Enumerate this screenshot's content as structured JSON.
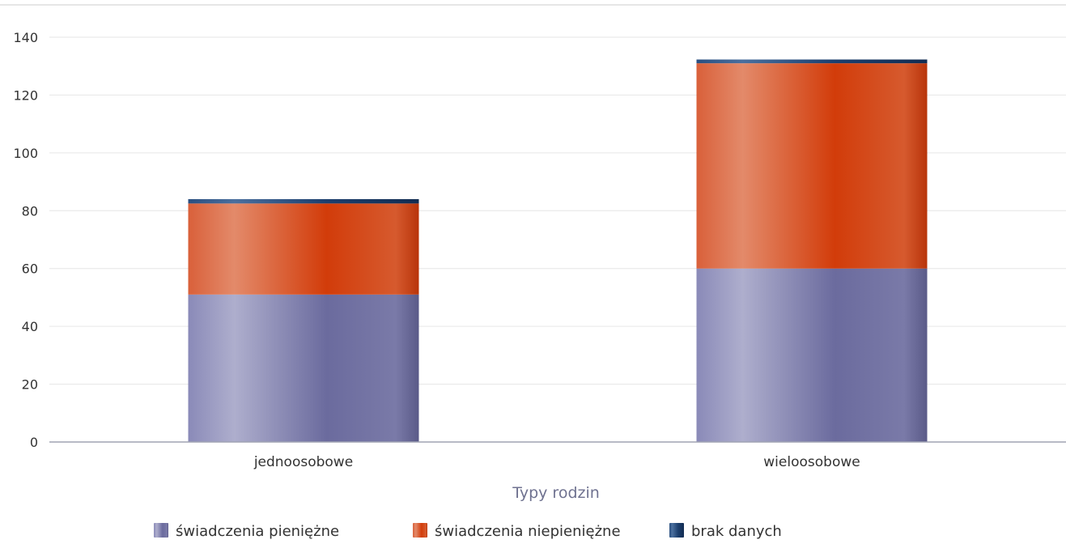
{
  "chart_data": {
    "type": "bar",
    "stacked": true,
    "categories": [
      "jednoosobowe",
      "wieloosobowe"
    ],
    "series": [
      {
        "name": "świadczenia pieniężne",
        "values": [
          51,
          60
        ],
        "color": "#6b6b9e"
      },
      {
        "name": "świadczenia niepieniężne",
        "values": [
          31.5,
          71
        ],
        "color": "#d23c0a"
      },
      {
        "name": "brak danych",
        "values": [
          1.5,
          1.3
        ],
        "color": "#1c3f6e"
      }
    ],
    "title": "",
    "xlabel": "Typy rodzin",
    "ylabel": "",
    "ylim": [
      0,
      140
    ],
    "yticks": [
      0,
      20,
      40,
      60,
      80,
      100,
      120,
      140
    ],
    "grid": true,
    "legend": "bottom"
  }
}
